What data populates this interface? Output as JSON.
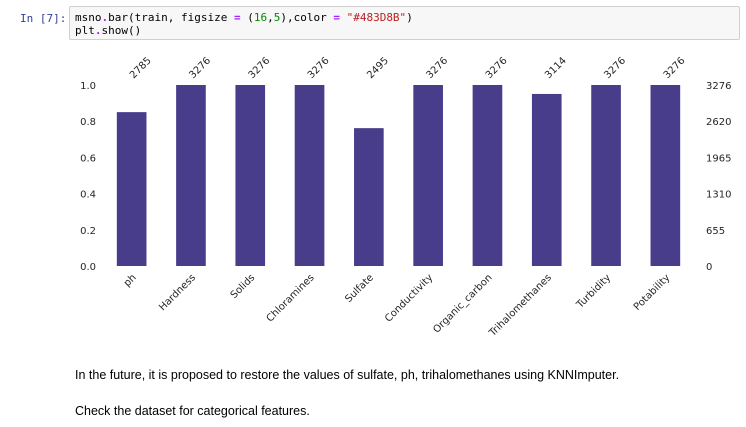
{
  "cell": {
    "prompt": "In [7]:",
    "code_tokens": [
      {
        "cls": "",
        "text": "msno"
      },
      {
        "cls": "op",
        "text": "."
      },
      {
        "cls": "",
        "text": "bar(train, figsize "
      },
      {
        "cls": "op",
        "text": "="
      },
      {
        "cls": "",
        "text": " ("
      },
      {
        "cls": "num",
        "text": "16"
      },
      {
        "cls": "",
        "text": ","
      },
      {
        "cls": "num",
        "text": "5"
      },
      {
        "cls": "",
        "text": "),color "
      },
      {
        "cls": "op",
        "text": "="
      },
      {
        "cls": "",
        "text": " "
      },
      {
        "cls": "str",
        "text": "\"#483D8B\""
      },
      {
        "cls": "",
        "text": ")"
      }
    ],
    "code_line2_tokens": [
      {
        "cls": "",
        "text": "plt"
      },
      {
        "cls": "op",
        "text": "."
      },
      {
        "cls": "",
        "text": "show()"
      }
    ]
  },
  "chart_data": {
    "type": "bar",
    "color": "#483D8B",
    "categories": [
      "ph",
      "Hardness",
      "Solids",
      "Chloramines",
      "Sulfate",
      "Conductivity",
      "Organic_carbon",
      "Trihalomethanes",
      "Turbidity",
      "Potability"
    ],
    "values": [
      2785,
      3276,
      3276,
      3276,
      2495,
      3276,
      3276,
      3114,
      3276,
      3276
    ],
    "bar_labels": [
      "2785",
      "3276",
      "3276",
      "3276",
      "2495",
      "3276",
      "3276",
      "3114",
      "3276",
      "3276"
    ],
    "total": 3276,
    "left_ticks": [
      "0.0",
      "0.2",
      "0.4",
      "0.6",
      "0.8",
      "1.0"
    ],
    "left_tick_values": [
      0,
      0.2,
      0.4,
      0.6,
      0.8,
      1.0
    ],
    "right_ticks": [
      "0",
      "655",
      "1310",
      "1965",
      "2620",
      "3276"
    ],
    "right_tick_values": [
      0,
      0.2,
      0.4,
      0.6,
      0.8,
      1.0
    ],
    "ylim": [
      0,
      1.0
    ]
  },
  "markdown": {
    "p1": "In the future, it is proposed to restore the values of sulfate, ph, trihalomethanes using KNNImputer.",
    "p2": "Check the dataset for categorical features."
  }
}
